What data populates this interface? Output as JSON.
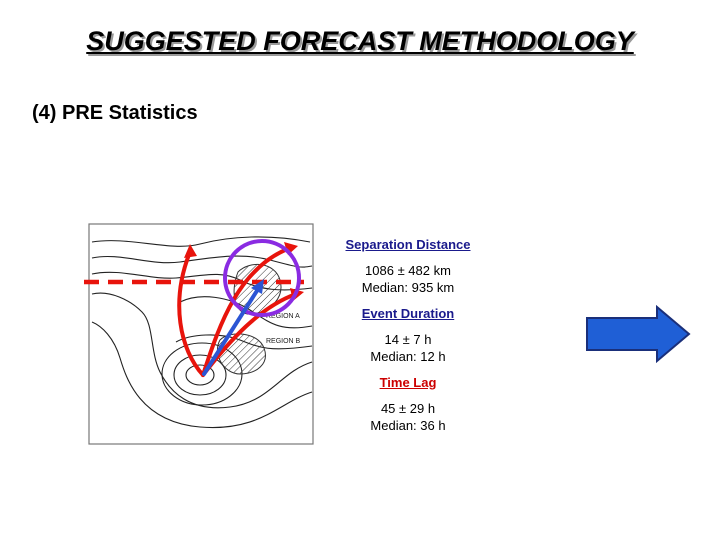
{
  "slide": {
    "title": "SUGGESTED FORECAST METHODOLOGY",
    "subtitle": "(4) PRE Statistics"
  },
  "diagram": {
    "region_a_label": "REGION A",
    "region_b_label": "REGION B"
  },
  "stats": {
    "separation": {
      "heading": "Separation Distance",
      "value": "1086 ± 482 km",
      "median": "Median:  935 km"
    },
    "duration": {
      "heading": "Event Duration",
      "value": "14 ± 7 h",
      "median": "Median:  12 h"
    },
    "lag": {
      "heading": "Time Lag",
      "value": "45 ± 29 h",
      "median": "Median:  36 h"
    }
  },
  "colors": {
    "red": "#e8140c",
    "purple": "#8a2be2",
    "blue": "#2b55d4",
    "next_arrow": "#1f5fd6"
  }
}
